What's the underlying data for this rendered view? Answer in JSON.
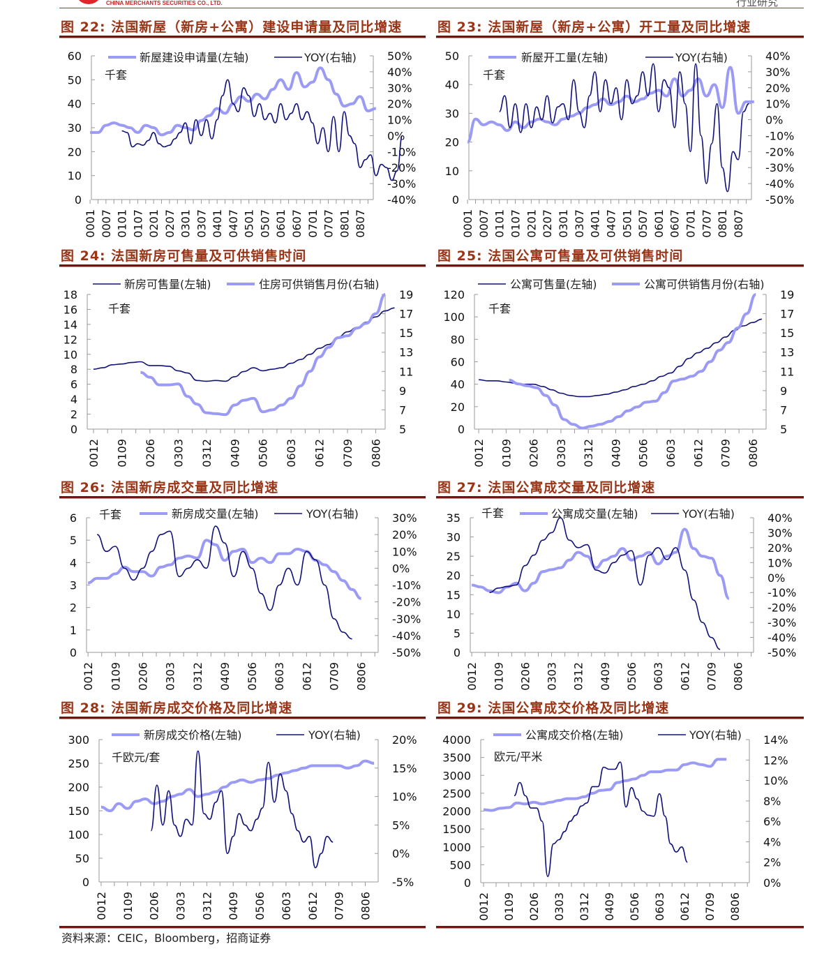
{
  "header": {
    "company": "CHINA MERCHANTS SECURITIES CO., LTD.",
    "section": "行业研究"
  },
  "colors": {
    "light_series": "#9b9bf5",
    "dark_series": "#10107a",
    "title": "#9a3416",
    "rule": "#7c1010"
  },
  "source": "资料来源：CEIC，Bloomberg，招商证券",
  "chart_data": [
    {
      "id": "c22",
      "type": "line",
      "title": "图 22:  法国新屋（新房+公寓）建设申请量及同比增速",
      "unit": "千套",
      "ylim_left": [
        0,
        60
      ],
      "yticks_left": [
        "0",
        "10",
        "20",
        "30",
        "40",
        "50",
        "60"
      ],
      "ylim_right": [
        -40,
        50
      ],
      "yticks_right": [
        "-40%",
        "-30%",
        "-20%",
        "-10%",
        "0%",
        "10%",
        "20%",
        "30%",
        "40%",
        "50%"
      ],
      "xlim": [
        0.5,
        107
      ],
      "x_ticks": [
        "0001",
        "0007",
        "0101",
        "0107",
        "0201",
        "0207",
        "0301",
        "0307",
        "0401",
        "0407",
        "0501",
        "0507",
        "0601",
        "0607",
        "0701",
        "0707",
        "0801",
        "0807"
      ],
      "x_tick_start": 0,
      "x_tick_step": 6,
      "series": [
        {
          "name": "新屋建设申请量(左轴)",
          "axis": "left",
          "style": "light",
          "start": 0,
          "step": 3,
          "values": [
            28,
            28,
            31,
            32,
            31,
            30,
            28,
            31,
            30,
            27,
            28,
            31,
            30,
            29,
            33,
            35,
            38,
            36,
            40,
            43,
            41,
            44,
            42,
            46,
            50,
            46,
            53,
            47,
            49,
            55,
            50,
            44,
            39,
            40,
            43,
            37,
            38
          ]
        },
        {
          "name": "YOY(右轴)",
          "axis": "right",
          "style": "dark",
          "start": 12,
          "step": 2,
          "values": [
            3,
            2,
            -7,
            -5,
            -6,
            -3,
            2,
            -5,
            -7,
            -6,
            -2,
            2,
            8,
            -5,
            10,
            0,
            10,
            -2,
            10,
            25,
            35,
            20,
            15,
            30,
            25,
            12,
            20,
            10,
            14,
            8,
            20,
            10,
            14,
            20,
            10,
            15,
            8,
            -5,
            5,
            -10,
            12,
            -10,
            15,
            0,
            -5,
            -20,
            -15,
            -12,
            -25,
            -18,
            -20,
            -28,
            -22,
            0
          ]
        }
      ]
    },
    {
      "id": "c23",
      "type": "line",
      "title": "图 23:  法国新屋（新房+公寓）开工量及同比增速",
      "unit": "千套",
      "ylim_left": [
        0,
        50
      ],
      "yticks_left": [
        "0",
        "10",
        "20",
        "30",
        "40",
        "50"
      ],
      "ylim_right": [
        -50,
        40
      ],
      "yticks_right": [
        "-50%",
        "-40%",
        "-30%",
        "-20%",
        "-10%",
        "0%",
        "10%",
        "20%",
        "30%",
        "40%"
      ],
      "xlim": [
        0.5,
        107
      ],
      "x_ticks": [
        "0001",
        "0007",
        "0101",
        "0107",
        "0201",
        "0207",
        "0301",
        "0307",
        "0401",
        "0407",
        "0501",
        "0507",
        "0601",
        "0607",
        "0701",
        "0707",
        "0801",
        "0807"
      ],
      "x_tick_start": 0,
      "x_tick_step": 6,
      "series": [
        {
          "name": "新屋开工量(左轴)",
          "axis": "left",
          "style": "light",
          "start": 0,
          "step": 3,
          "values": [
            20,
            28,
            26,
            27,
            26,
            24,
            27,
            25,
            27,
            28,
            27,
            26,
            28,
            29,
            30,
            32,
            33,
            35,
            33,
            34,
            36,
            34,
            35,
            37,
            38,
            36,
            42,
            36,
            38,
            42,
            36,
            40,
            32,
            46,
            30,
            34,
            34
          ]
        },
        {
          "name": "YOY(右轴)",
          "axis": "right",
          "style": "dark",
          "start": 12,
          "step": 2,
          "values": [
            5,
            15,
            -5,
            10,
            -8,
            10,
            -5,
            8,
            0,
            15,
            -2,
            8,
            10,
            0,
            25,
            5,
            -5,
            15,
            30,
            5,
            25,
            10,
            20,
            0,
            25,
            10,
            15,
            30,
            15,
            35,
            5,
            25,
            20,
            -5,
            30,
            10,
            -20,
            35,
            -10,
            -40,
            -15,
            10,
            -30,
            -45,
            -20,
            -25,
            5,
            10
          ]
        }
      ]
    },
    {
      "id": "c24",
      "type": "line",
      "title": "图 24:  法国新房可售量及可供销售时间",
      "unit": "千套",
      "ylim_left": [
        0,
        18
      ],
      "yticks_left": [
        "0",
        "2",
        "4",
        "6",
        "8",
        "10",
        "12",
        "14",
        "16",
        "18"
      ],
      "ylim_right": [
        5,
        19
      ],
      "yticks_right": [
        "5",
        "7",
        "9",
        "11",
        "13",
        "15",
        "17",
        "19"
      ],
      "xlim": [
        -2,
        93
      ],
      "x_ticks": [
        "0012",
        "0109",
        "0206",
        "0303",
        "0312",
        "0409",
        "0506",
        "0603",
        "0612",
        "0709",
        "0806"
      ],
      "x_tick_start": 0,
      "x_tick_step": 9,
      "series": [
        {
          "name": "新房可售量(左轴)",
          "axis": "left",
          "style": "dark",
          "start": 0,
          "step": 3,
          "values": [
            8,
            8.2,
            8.6,
            8.7,
            8.9,
            9,
            8.5,
            8.5,
            8.4,
            7.8,
            7.5,
            6.5,
            6.4,
            6.5,
            6.4,
            7,
            7.7,
            8.2,
            7.8,
            8,
            8.2,
            8.8,
            9.3,
            10,
            10.8,
            11.3,
            12.3,
            13,
            13.6,
            14.3,
            15,
            15.8,
            16.2
          ]
        },
        {
          "name": "住房可供销售月份(右轴)",
          "axis": "right",
          "style": "light",
          "start": 15,
          "step": 3,
          "values": [
            10.9,
            10.4,
            9.6,
            9.6,
            9.7,
            8.4,
            7.6,
            6.7,
            6.6,
            6.5,
            7.5,
            8,
            8.2,
            6.8,
            7,
            7.5,
            8.2,
            9.5,
            11,
            12.5,
            13.5,
            14.5,
            14.7,
            15.5,
            16,
            17,
            19
          ]
        }
      ]
    },
    {
      "id": "c25",
      "type": "line",
      "title": "图 25:  法国公寓可售量及可供销售时间",
      "unit": "千套",
      "ylim_left": [
        0,
        120
      ],
      "yticks_left": [
        "0",
        "20",
        "40",
        "60",
        "80",
        "100",
        "120"
      ],
      "ylim_right": [
        5,
        19
      ],
      "yticks_right": [
        "5",
        "7",
        "9",
        "11",
        "13",
        "15",
        "17",
        "19"
      ],
      "xlim": [
        -1.4,
        94.4
      ],
      "x_ticks": [
        "0012",
        "0109",
        "0206",
        "0303",
        "0312",
        "0409",
        "0506",
        "0603",
        "0612",
        "0709",
        "0806"
      ],
      "x_tick_start": 0,
      "x_tick_step": 9,
      "series": [
        {
          "name": "公寓可售量(左轴)",
          "axis": "left",
          "style": "dark",
          "start": 0,
          "step": 3,
          "values": [
            44,
            43,
            43,
            42,
            41,
            40,
            40,
            38,
            35,
            32,
            30,
            29,
            29,
            30,
            31,
            33,
            35,
            38,
            40,
            43,
            47,
            50,
            56,
            63,
            68,
            72,
            77,
            82,
            88,
            92,
            95,
            98
          ]
        },
        {
          "name": "公寓可供销售月份(右轴)",
          "axis": "right",
          "style": "light",
          "start": 10,
          "step": 3,
          "values": [
            10.1,
            9.7,
            9.5,
            9.3,
            8.5,
            7.5,
            6,
            5.5,
            5.1,
            5.3,
            5.5,
            5.8,
            6.3,
            6.9,
            7.3,
            7.8,
            7.9,
            8.8,
            10,
            10.2,
            10.5,
            11,
            12,
            13.2,
            14,
            15.5,
            17,
            19
          ]
        }
      ]
    },
    {
      "id": "c26",
      "type": "line",
      "title": "图 26:  法国新房成交量及同比增速",
      "unit": "千套",
      "ylim_left": [
        0,
        6
      ],
      "yticks_left": [
        "0",
        "1",
        "2",
        "3",
        "4",
        "5",
        "6"
      ],
      "ylim_right": [
        -50,
        30
      ],
      "yticks_right": [
        "-50%",
        "-40%",
        "-30%",
        "-20%",
        "-10%",
        "0%",
        "10%",
        "20%",
        "30%"
      ],
      "xlim": [
        -0.5,
        95.6
      ],
      "x_ticks": [
        "0012",
        "0109",
        "0206",
        "0303",
        "0312",
        "0409",
        "0506",
        "0603",
        "0612",
        "0709",
        "0806"
      ],
      "x_tick_start": 0,
      "x_tick_step": 9,
      "series": [
        {
          "name": "新房成交量(左轴)",
          "axis": "left",
          "style": "light",
          "start": 0,
          "step": 3,
          "values": [
            3.1,
            3.3,
            3.3,
            3.5,
            3.8,
            3.6,
            3.6,
            3.4,
            3.8,
            3.9,
            4.2,
            4.3,
            4.2,
            5,
            4.8,
            4.1,
            4.5,
            4.6,
            4,
            4.2,
            4,
            4.4,
            4.4,
            4.6,
            4.5,
            4.1,
            3.9,
            3.6,
            3.2,
            2.8,
            2.4
          ]
        },
        {
          "name": "YOY(右轴)",
          "axis": "right",
          "style": "dark",
          "start": 3,
          "step": 3,
          "values": [
            20,
            10,
            13,
            0,
            -7,
            0,
            10,
            20,
            22,
            -5,
            0,
            5,
            0,
            25,
            15,
            -5,
            10,
            0,
            -15,
            -25,
            -10,
            0,
            -10,
            10,
            5,
            -10,
            -30,
            -38,
            -42
          ]
        }
      ]
    },
    {
      "id": "c27",
      "type": "line",
      "title": "图 27:  法国公寓成交量及同比增速",
      "unit": "千套",
      "ylim_left": [
        0,
        35
      ],
      "yticks_left": [
        "0",
        "5",
        "10",
        "15",
        "20",
        "25",
        "30",
        "35"
      ],
      "ylim_right": [
        -50,
        40
      ],
      "yticks_right": [
        "-50%",
        "-40%",
        "-30%",
        "-20%",
        "-10%",
        "0%",
        "10%",
        "20%",
        "30%",
        "40%"
      ],
      "xlim": [
        -0.5,
        95.3
      ],
      "x_ticks": [
        "0012",
        "0109",
        "0206",
        "0303",
        "0312",
        "0409",
        "0506",
        "0603",
        "0612",
        "0709",
        "0806"
      ],
      "x_tick_start": 0,
      "x_tick_step": 9,
      "series": [
        {
          "name": "公寓成交量(左轴)",
          "axis": "left",
          "style": "light",
          "start": 0,
          "step": 3,
          "values": [
            17.5,
            17,
            16,
            15.5,
            17,
            18,
            16,
            18,
            21,
            21.5,
            22,
            24,
            26,
            25,
            22,
            24,
            25,
            27,
            24,
            25,
            26,
            23,
            25,
            26,
            32,
            27,
            25,
            24.5,
            20,
            14
          ]
        },
        {
          "name": "YOY(右轴)",
          "axis": "right",
          "style": "dark",
          "start": 6,
          "step": 3,
          "values": [
            -10,
            -7,
            -6,
            -5,
            8,
            15,
            25,
            30,
            40,
            25,
            20,
            22,
            5,
            3,
            10,
            15,
            18,
            -5,
            15,
            20,
            12,
            20,
            5,
            -15,
            -30,
            -40,
            -48
          ]
        }
      ]
    },
    {
      "id": "c28",
      "type": "line",
      "title": "图 28:  法国新房成交价格及同比增速",
      "unit": "千欧元/套",
      "ylim_left": [
        0,
        300
      ],
      "yticks_left": [
        "0",
        "50",
        "100",
        "150",
        "200",
        "250",
        "300"
      ],
      "ylim_right": [
        -5,
        20
      ],
      "yticks_right": [
        "-5%",
        "0%",
        "5%",
        "10%",
        "15%",
        "20%"
      ],
      "xlim": [
        -0.7,
        94.4
      ],
      "x_ticks": [
        "0012",
        "0109",
        "0206",
        "0303",
        "0312",
        "0409",
        "0506",
        "0603",
        "0612",
        "0709",
        "0806"
      ],
      "x_tick_start": 0,
      "x_tick_step": 9,
      "series": [
        {
          "name": "新房成交价格(左轴)",
          "axis": "left",
          "style": "light",
          "start": 0,
          "step": 3,
          "values": [
            158,
            150,
            165,
            155,
            170,
            175,
            165,
            170,
            180,
            185,
            195,
            180,
            185,
            190,
            200,
            210,
            215,
            210,
            215,
            218,
            225,
            230,
            235,
            240,
            245,
            245,
            245,
            245,
            240,
            245,
            255,
            250
          ]
        },
        {
          "name": "YOY(右轴)",
          "axis": "right",
          "style": "dark",
          "start": 17,
          "step": 2,
          "values": [
            4,
            12,
            5,
            11,
            5,
            3,
            6,
            5,
            18,
            7,
            6,
            9,
            11,
            0,
            3,
            7,
            5,
            4,
            6,
            8,
            16,
            9,
            14,
            11,
            7,
            4,
            2,
            3,
            -2.5,
            0,
            3,
            2
          ]
        }
      ]
    },
    {
      "id": "c29",
      "type": "line",
      "title": "图 29:  法国公寓成交价格及同比增速",
      "unit": "欧元/平米",
      "ylim_left": [
        0,
        4000
      ],
      "yticks_left": [
        "0",
        "500",
        "1000",
        "1500",
        "2000",
        "2500",
        "3000",
        "3500",
        "4000"
      ],
      "ylim_right": [
        0,
        14
      ],
      "yticks_right": [
        "0%",
        "2%",
        "4%",
        "6%",
        "8%",
        "10%",
        "12%",
        "14%"
      ],
      "xlim": [
        -1,
        95.2
      ],
      "x_ticks": [
        "0012",
        "0109",
        "0206",
        "0303",
        "0312",
        "0409",
        "0506",
        "0603",
        "0612",
        "0709",
        "0806"
      ],
      "x_tick_start": 0,
      "x_tick_step": 9,
      "series": [
        {
          "name": "公寓成交价格(左轴)",
          "axis": "left",
          "style": "light",
          "start": 0,
          "step": 3,
          "values": [
            2040,
            2020,
            2080,
            2100,
            2230,
            2200,
            2250,
            2200,
            2250,
            2300,
            2350,
            2350,
            2400,
            2500,
            2580,
            2600,
            2800,
            2850,
            2900,
            3000,
            3100,
            3100,
            3150,
            3150,
            3300,
            3350,
            3300,
            3250,
            3450,
            3450
          ]
        },
        {
          "name": "YOY(右轴)",
          "axis": "right",
          "style": "dark",
          "start": 11,
          "step": 2,
          "values": [
            8.5,
            9.8,
            8.5,
            7.3,
            7.3,
            6,
            0.6,
            3.8,
            4.2,
            5,
            6,
            6.6,
            7.5,
            7.8,
            9.4,
            9.4,
            11.3,
            11.1,
            11.1,
            11.8,
            7.4,
            9.3,
            8.2,
            7,
            6.6,
            6.5,
            8.7,
            6.5,
            3.8,
            3,
            3.5,
            2
          ]
        }
      ]
    }
  ]
}
